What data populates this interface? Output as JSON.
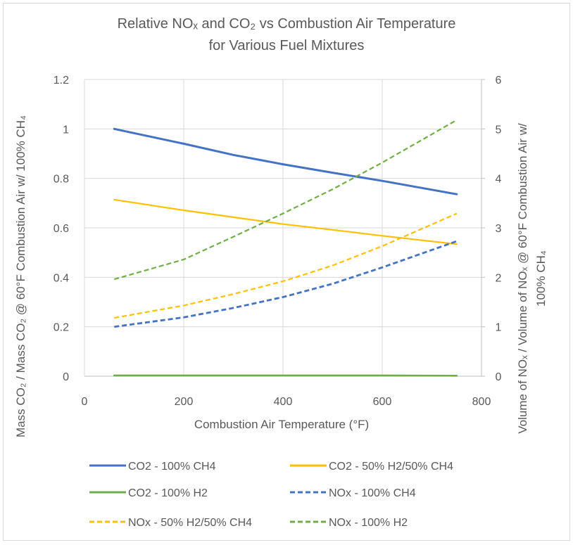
{
  "chart_data": {
    "type": "line",
    "title_line1": "Relative NOₓ and CO₂ vs Combustion Air Temperature",
    "title_line2": "for Various Fuel Mixtures",
    "xlabel": "Combustion Air Temperature (°F)",
    "ylabel_left": "Mass CO₂ / Mass CO₂ @ 60°F Combustion Air w/ 100% CH₄",
    "ylabel_right_line1": "Volume of NOₓ / Volume of NOₓ @ 60°F Combustion Air w/",
    "ylabel_right_line2": "100% CH₄",
    "xlim": [
      0,
      800
    ],
    "ylim_left": [
      0,
      1.2
    ],
    "ylim_right": [
      0,
      6
    ],
    "x_ticks": [
      "0",
      "200",
      "400",
      "600",
      "800"
    ],
    "y_left_ticks": [
      "0",
      "0.2",
      "0.4",
      "0.6",
      "0.8",
      "1",
      "1.2"
    ],
    "y_right_ticks": [
      "0",
      "1",
      "2",
      "3",
      "4",
      "5",
      "6"
    ],
    "grid": true,
    "legend_position": "bottom",
    "series": [
      {
        "name": "CO2 - 100% CH4",
        "axis": "left",
        "style": "solid",
        "color": "#4472C4",
        "x": [
          60,
          200,
          300,
          400,
          500,
          600,
          750
        ],
        "y": [
          1.0,
          0.94,
          0.895,
          0.857,
          0.823,
          0.79,
          0.736
        ]
      },
      {
        "name": "CO2 - 50% H2/50% CH4",
        "axis": "left",
        "style": "solid",
        "color": "#FFC000",
        "x": [
          60,
          200,
          300,
          400,
          500,
          600,
          750
        ],
        "y": [
          0.714,
          0.671,
          0.643,
          0.615,
          0.592,
          0.568,
          0.534
        ]
      },
      {
        "name": "CO2 - 100% H2",
        "axis": "left",
        "style": "solid",
        "color": "#70AD47",
        "x": [
          60,
          200,
          400,
          600,
          750
        ],
        "y": [
          0.003,
          0.003,
          0.003,
          0.003,
          0.002
        ]
      },
      {
        "name": "NOx - 100% CH4",
        "axis": "right",
        "style": "dashed",
        "color": "#4472C4",
        "x": [
          60,
          200,
          300,
          400,
          500,
          600,
          750
        ],
        "y": [
          1.0,
          1.19,
          1.38,
          1.6,
          1.87,
          2.2,
          2.73
        ]
      },
      {
        "name": "NOx - 50% H2/50% CH4",
        "axis": "right",
        "style": "dashed",
        "color": "#FFC000",
        "x": [
          60,
          200,
          300,
          400,
          500,
          600,
          750
        ],
        "y": [
          1.18,
          1.43,
          1.66,
          1.92,
          2.24,
          2.63,
          3.29
        ]
      },
      {
        "name": "NOx  - 100% H2",
        "axis": "right",
        "style": "dashed",
        "color": "#70AD47",
        "x": [
          60,
          200,
          300,
          400,
          500,
          600,
          750
        ],
        "y": [
          1.96,
          2.36,
          2.82,
          3.29,
          3.78,
          4.32,
          5.18
        ]
      }
    ]
  }
}
